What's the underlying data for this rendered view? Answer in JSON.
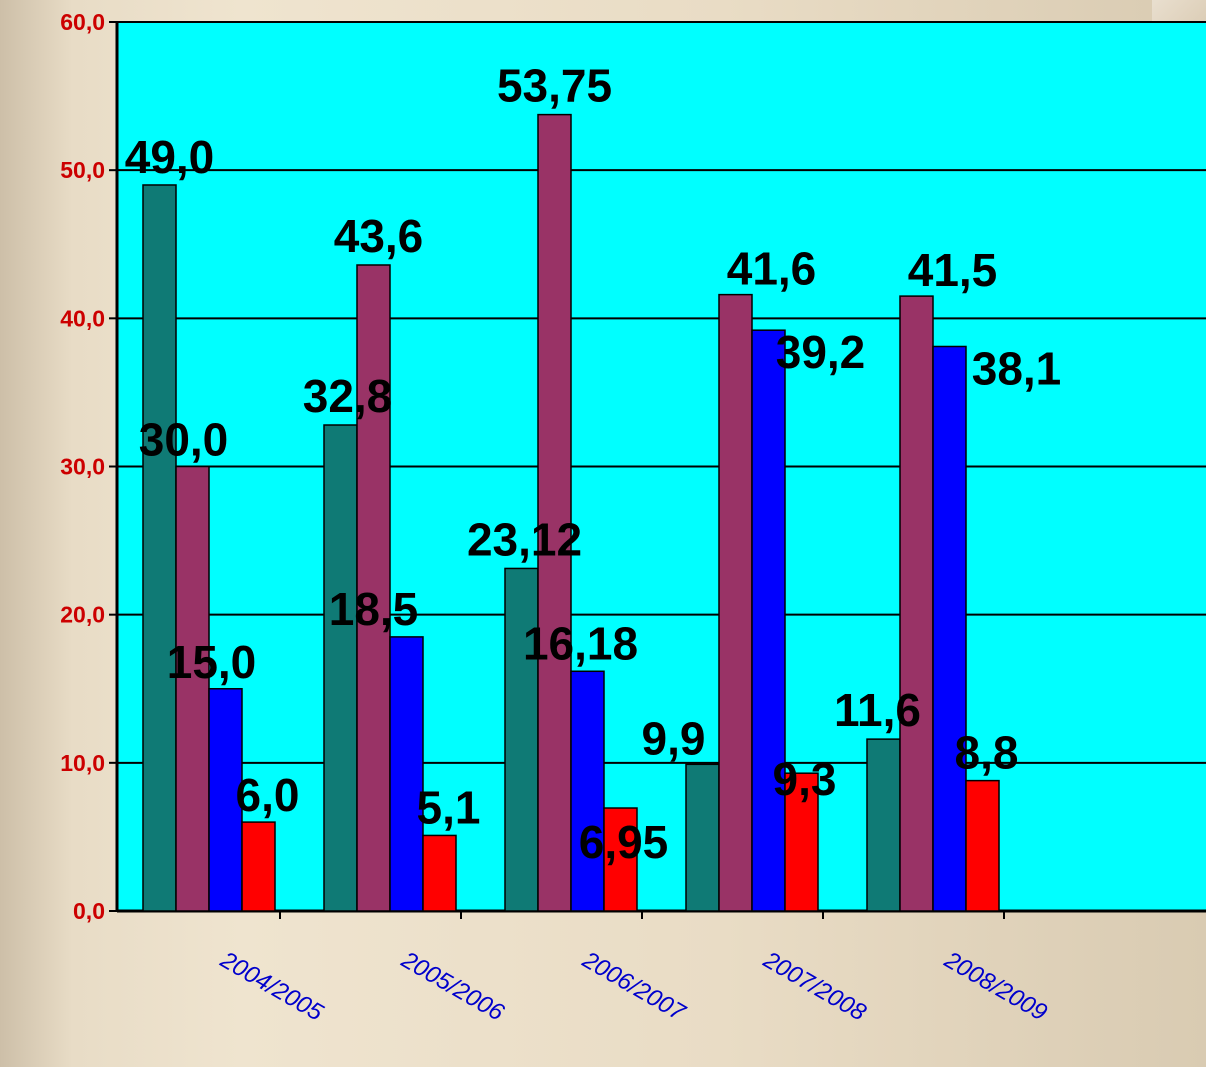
{
  "chart_data": {
    "type": "bar",
    "categories": [
      "2004/2005",
      "2005/2006",
      "2006/2007",
      "2007/2008",
      "2008/2009"
    ],
    "series": [
      {
        "values": [
          49.0,
          32.8,
          23.12,
          9.9,
          11.6
        ],
        "labels": [
          "49,0",
          "32,8",
          "23,12",
          "9,9",
          "11,6"
        ]
      },
      {
        "values": [
          30.0,
          43.6,
          53.75,
          41.6,
          41.5
        ],
        "labels": [
          "30,0",
          "43,6",
          "53,75",
          "41,6",
          "41,5"
        ]
      },
      {
        "values": [
          15.0,
          18.5,
          16.18,
          39.2,
          38.1
        ],
        "labels": [
          "15,0",
          "18,5",
          "16,18",
          "39,2",
          "38,1"
        ]
      },
      {
        "values": [
          6.0,
          5.1,
          6.95,
          9.3,
          8.8
        ],
        "labels": [
          "6,0",
          "5,1",
          "6,95",
          "9,3",
          "8,8"
        ]
      }
    ],
    "y_ticks": [
      "0,0",
      "10,0",
      "20,0",
      "30,0",
      "40,0",
      "50,0",
      "60,0"
    ],
    "ylim": [
      0,
      60
    ],
    "grid": true,
    "title": "",
    "xlabel": "",
    "ylabel": ""
  },
  "colors": {
    "plot_background": "#00ffff",
    "series": [
      "#0f7a75",
      "#993366",
      "#0000ff",
      "#ff0000"
    ],
    "y_tick_labels": "#cc0000",
    "x_tick_labels": "#0000cc",
    "data_labels": "#000000"
  }
}
